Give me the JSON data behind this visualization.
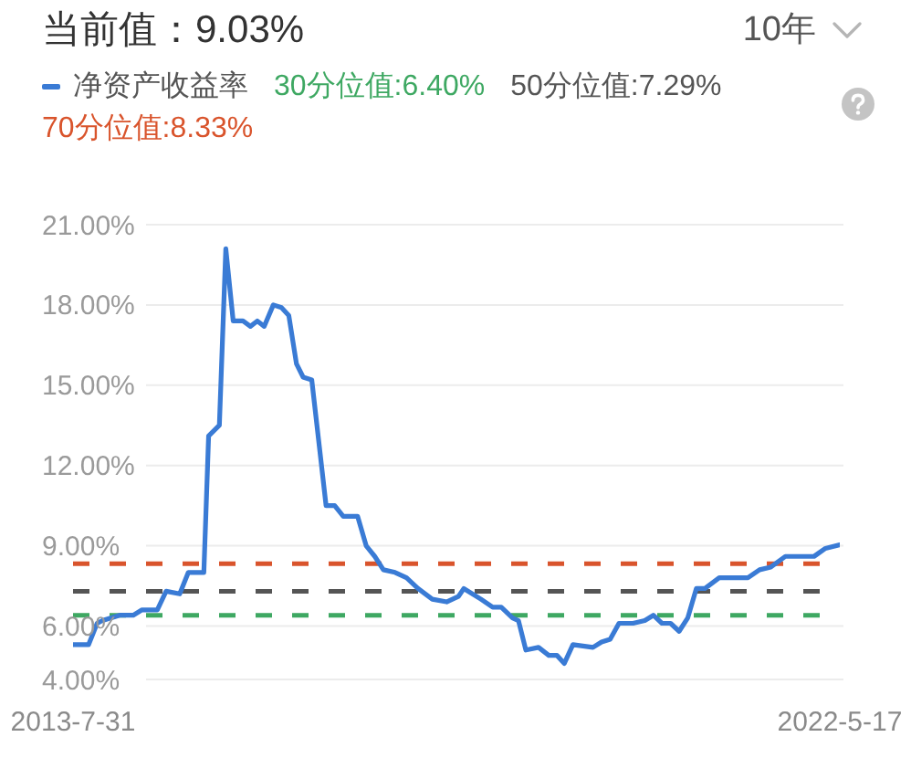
{
  "chart_data": {
    "type": "line",
    "title": "当前值：9.03%",
    "annotations": [
      "10年"
    ],
    "x": [
      "2013-07-31",
      "2013-10-04",
      "2013-11-09",
      "2013-12-01",
      "2014-02-11",
      "2014-04-09",
      "2014-05-16",
      "2014-07-19",
      "2014-08-25",
      "2014-10-21",
      "2014-11-26",
      "2015-01-30",
      "2015-02-19",
      "2015-04-05",
      "2015-05-02",
      "2015-06-02",
      "2015-07-13",
      "2015-08-13",
      "2015-09-11",
      "2015-10-10",
      "2015-11-17",
      "2015-12-21",
      "2016-01-21",
      "2016-02-22",
      "2016-03-21",
      "2016-04-26",
      "2016-06-25",
      "2016-07-31",
      "2016-09-05",
      "2016-11-04",
      "2016-12-10",
      "2017-01-15",
      "2017-02-20",
      "2017-04-10",
      "2017-05-28",
      "2017-07-15",
      "2017-09-13",
      "2017-11-12",
      "2017-12-31",
      "2018-01-23",
      "2018-04-05",
      "2018-05-24",
      "2018-06-29",
      "2018-08-15",
      "2018-09-09",
      "2018-10-10",
      "2018-12-02",
      "2019-01-14",
      "2019-02-17",
      "2019-03-20",
      "2019-04-25",
      "2019-07-18",
      "2019-08-23",
      "2019-09-28",
      "2019-11-04",
      "2020-01-02",
      "2020-02-20",
      "2020-03-27",
      "2020-05-02",
      "2020-06-07",
      "2020-07-13",
      "2020-08-18",
      "2020-09-23",
      "2020-10-29",
      "2020-12-28",
      "2021-02-02",
      "2021-04-27",
      "2021-06-15",
      "2021-08-01",
      "2021-10-01",
      "2022-01-29",
      "2022-03-18",
      "2022-05-17"
    ],
    "series": [
      {
        "name": "净资产收益率",
        "color": "#3a7bd5",
        "values": [
          5.3,
          5.3,
          6.1,
          6.2,
          6.4,
          6.4,
          6.6,
          6.6,
          7.3,
          7.2,
          8.0,
          8.0,
          13.1,
          13.5,
          20.1,
          17.4,
          17.4,
          17.2,
          17.4,
          17.2,
          18.0,
          17.9,
          17.6,
          15.8,
          15.3,
          15.2,
          10.5,
          10.5,
          10.1,
          10.1,
          9.0,
          8.6,
          8.1,
          8.0,
          7.8,
          7.4,
          7.0,
          6.9,
          7.1,
          7.4,
          7.0,
          6.7,
          6.7,
          6.3,
          6.2,
          5.1,
          5.2,
          4.9,
          4.9,
          4.6,
          5.3,
          5.2,
          5.4,
          5.5,
          6.1,
          6.1,
          6.2,
          6.4,
          6.1,
          6.1,
          5.8,
          6.3,
          7.4,
          7.4,
          7.8,
          7.8,
          7.8,
          8.1,
          8.2,
          8.6,
          8.6,
          8.9,
          9.03
        ]
      }
    ],
    "xlim": [
      "2013-07-31",
      "2022-05-17"
    ],
    "xticks": [
      {
        "value": "2013-07-31",
        "label": "2013-7-31"
      },
      {
        "value": "2022-05-17",
        "label": "2022-5-17"
      }
    ],
    "ylim": [
      4,
      21
    ],
    "yticks": [
      {
        "value": 4,
        "label": "4.00%"
      },
      {
        "value": 6,
        "label": "6.00%"
      },
      {
        "value": 9,
        "label": "9.00%"
      },
      {
        "value": 12,
        "label": "12.00%"
      },
      {
        "value": 15,
        "label": "15.00%"
      },
      {
        "value": 18,
        "label": "18.00%"
      },
      {
        "value": 21,
        "label": "21.00%"
      }
    ],
    "ref_lines": [
      {
        "axis": "y",
        "value": 6.4,
        "label": "30分位值:6.40%",
        "color": "#3ea862",
        "line_style": "dashed"
      },
      {
        "axis": "y",
        "value": 7.29,
        "label": "50分位值:7.29%",
        "color": "#555555",
        "line_style": "dashed"
      },
      {
        "axis": "y",
        "value": 8.33,
        "label": "70分位值:8.33%",
        "color": "#d9542c",
        "line_style": "dashed"
      }
    ],
    "grid": "y",
    "legend": "top left"
  }
}
